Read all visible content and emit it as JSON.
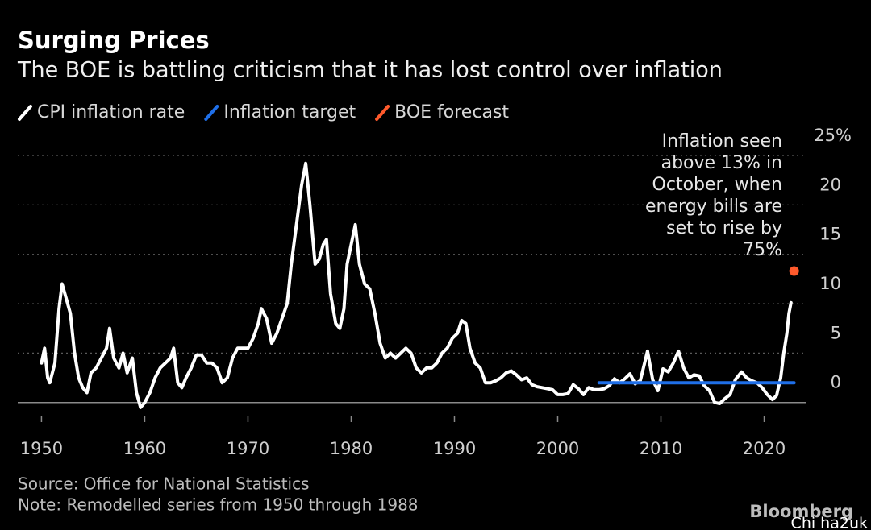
{
  "chart_data": {
    "type": "line",
    "title": "Surging Prices",
    "subtitle": "The BOE is battling criticism that it has lost control over inflation",
    "series": [
      {
        "name": "CPI inflation rate",
        "color": "#ffffff",
        "x": [
          1950.0,
          1950.3,
          1950.6,
          1950.8,
          1951.3,
          1951.7,
          1952.0,
          1952.4,
          1952.8,
          1953.2,
          1953.6,
          1954.0,
          1954.4,
          1954.8,
          1955.3,
          1955.8,
          1956.3,
          1956.6,
          1957.0,
          1957.5,
          1957.9,
          1958.3,
          1958.8,
          1959.2,
          1959.6,
          1960.0,
          1960.5,
          1961.0,
          1961.5,
          1962.0,
          1962.5,
          1962.8,
          1963.2,
          1963.6,
          1964.0,
          1964.5,
          1965.0,
          1965.5,
          1966.0,
          1966.5,
          1967.0,
          1967.5,
          1968.0,
          1968.5,
          1969.0,
          1969.5,
          1970.0,
          1970.5,
          1971.0,
          1971.3,
          1971.8,
          1972.3,
          1972.8,
          1973.3,
          1973.8,
          1974.2,
          1974.7,
          1975.2,
          1975.6,
          1976.0,
          1976.5,
          1976.9,
          1977.3,
          1977.6,
          1978.0,
          1978.5,
          1978.9,
          1979.3,
          1979.6,
          1980.0,
          1980.4,
          1980.8,
          1981.3,
          1981.8,
          1982.3,
          1982.8,
          1983.3,
          1983.8,
          1984.3,
          1984.8,
          1985.3,
          1985.8,
          1986.3,
          1986.8,
          1987.3,
          1987.8,
          1988.3,
          1988.8,
          1989.3,
          1989.8,
          1990.3,
          1990.7,
          1991.1,
          1991.5,
          1992.0,
          1992.5,
          1993.0,
          1993.5,
          1994.0,
          1994.5,
          1995.0,
          1995.5,
          1996.0,
          1996.5,
          1997.0,
          1997.5,
          1998.0,
          1998.5,
          1999.0,
          1999.5,
          2000.0,
          2000.5,
          2001.0,
          2001.5,
          2002.0,
          2002.5,
          2003.0,
          2003.5,
          2004.0,
          2004.5,
          2005.0,
          2005.5,
          2006.0,
          2006.5,
          2007.0,
          2007.5,
          2008.0,
          2008.7,
          2009.2,
          2009.7,
          2010.2,
          2010.7,
          2011.2,
          2011.7,
          2012.2,
          2012.7,
          2013.2,
          2013.7,
          2014.2,
          2014.7,
          2015.2,
          2015.7,
          2016.2,
          2016.7,
          2017.2,
          2017.8,
          2018.3,
          2018.8,
          2019.3,
          2019.8,
          2020.3,
          2020.8,
          2021.2,
          2021.6,
          2021.9,
          2022.2,
          2022.4,
          2022.6
        ],
        "values": [
          4,
          5.5,
          2.5,
          2,
          4,
          9.5,
          12,
          10.5,
          9,
          5,
          2.5,
          1.5,
          1,
          3,
          3.5,
          4.5,
          5.5,
          7.5,
          4.5,
          3.5,
          5,
          3,
          4.5,
          1,
          -0.5,
          0,
          1,
          2.5,
          3.5,
          4,
          4.5,
          5.5,
          2,
          1.5,
          2.5,
          3.5,
          4.8,
          4.8,
          4,
          4,
          3.5,
          2,
          2.5,
          4.5,
          5.5,
          5.5,
          5.5,
          6.5,
          8,
          9.5,
          8.5,
          6,
          7,
          8.5,
          10,
          14,
          18,
          22,
          24.2,
          20,
          14,
          14.5,
          16,
          16.5,
          11,
          8,
          7.5,
          9.5,
          14,
          16,
          18,
          14,
          12,
          11.5,
          9,
          6,
          4.5,
          5,
          4.5,
          5,
          5.5,
          5,
          3.5,
          3,
          3.5,
          3.5,
          4,
          5,
          5.5,
          6.5,
          7,
          8.3,
          8,
          5.5,
          4,
          3.5,
          2,
          2,
          2.2,
          2.5,
          3,
          3.2,
          2.8,
          2.3,
          2.5,
          1.8,
          1.6,
          1.5,
          1.4,
          1.3,
          0.8,
          0.8,
          0.9,
          1.8,
          1.4,
          0.8,
          1.5,
          1.3,
          1.3,
          1.4,
          1.7,
          2.4,
          2.0,
          2.4,
          2.9,
          1.9,
          2.2,
          5.2,
          2.3,
          1.2,
          3.4,
          3.1,
          4.0,
          5.2,
          3.5,
          2.5,
          2.8,
          2.7,
          1.7,
          1.2,
          0,
          -0.1,
          0.4,
          0.8,
          2.3,
          3.1,
          2.5,
          2.2,
          2.0,
          1.5,
          0.8,
          0.3,
          0.7,
          2.5,
          5.0,
          7.0,
          9.0,
          10.1
        ]
      },
      {
        "name": "Inflation target",
        "color": "#1f6fe8",
        "x": [
          2004,
          2022.9
        ],
        "values": [
          2,
          2
        ]
      },
      {
        "name": "BOE forecast",
        "color": "#ff5a2c",
        "x": [
          2022.9
        ],
        "values": [
          13.3
        ]
      }
    ],
    "xlim": [
      1947.7,
      2024.1
    ],
    "xticks": [
      1950,
      1960,
      1970,
      1980,
      1990,
      2000,
      2010,
      2020
    ],
    "ylim": [
      -1,
      25
    ],
    "yticks": [
      0,
      5,
      10,
      15,
      20,
      {
        "value": 25,
        "label": "25%"
      }
    ],
    "grid": true,
    "annotation": [
      "Inflation seen",
      "above 13% in",
      "October, when",
      "energy bills are",
      "set to rise by",
      "75%"
    ],
    "source": "Source: Office for National Statistics",
    "note": "Note: Remodelled series from 1950 through 1988",
    "brand": "Bloomberg",
    "watermark": "Chi ha2uk"
  }
}
